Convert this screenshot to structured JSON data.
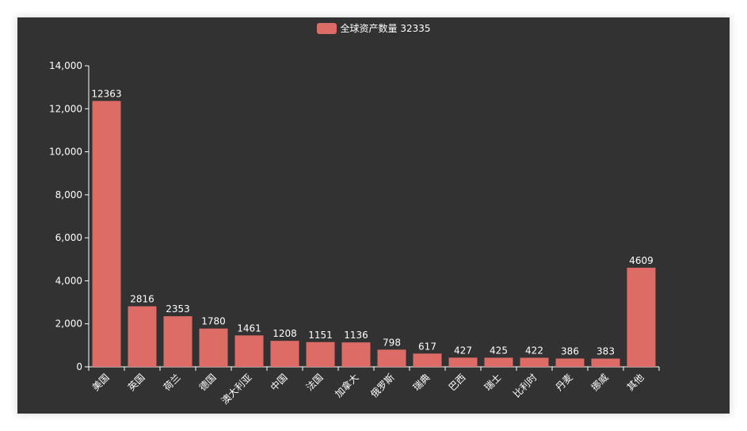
{
  "legend": {
    "label": "全球资产数量 32335",
    "color": "#dd6b66"
  },
  "chart_data": {
    "type": "bar",
    "categories": [
      "美国",
      "英国",
      "荷兰",
      "德国",
      "澳大利亚",
      "中国",
      "法国",
      "加拿大",
      "俄罗斯",
      "瑞典",
      "巴西",
      "瑞士",
      "比利时",
      "丹麦",
      "挪威",
      "其他"
    ],
    "series": [
      {
        "name": "全球资产数量 32335",
        "values": [
          12363,
          2816,
          2353,
          1780,
          1461,
          1208,
          1151,
          1136,
          798,
          617,
          427,
          425,
          422,
          386,
          383,
          4609
        ]
      }
    ],
    "ylim": [
      0,
      14000
    ],
    "yticks": [
      0,
      2000,
      4000,
      6000,
      8000,
      10000,
      12000,
      14000
    ],
    "ytick_labels": [
      "0",
      "2,000",
      "4,000",
      "6,000",
      "8,000",
      "10,000",
      "12,000",
      "14,000"
    ],
    "bar_color": "#dd6b66",
    "background": "#323232",
    "grid": false,
    "legend_position": "top"
  }
}
